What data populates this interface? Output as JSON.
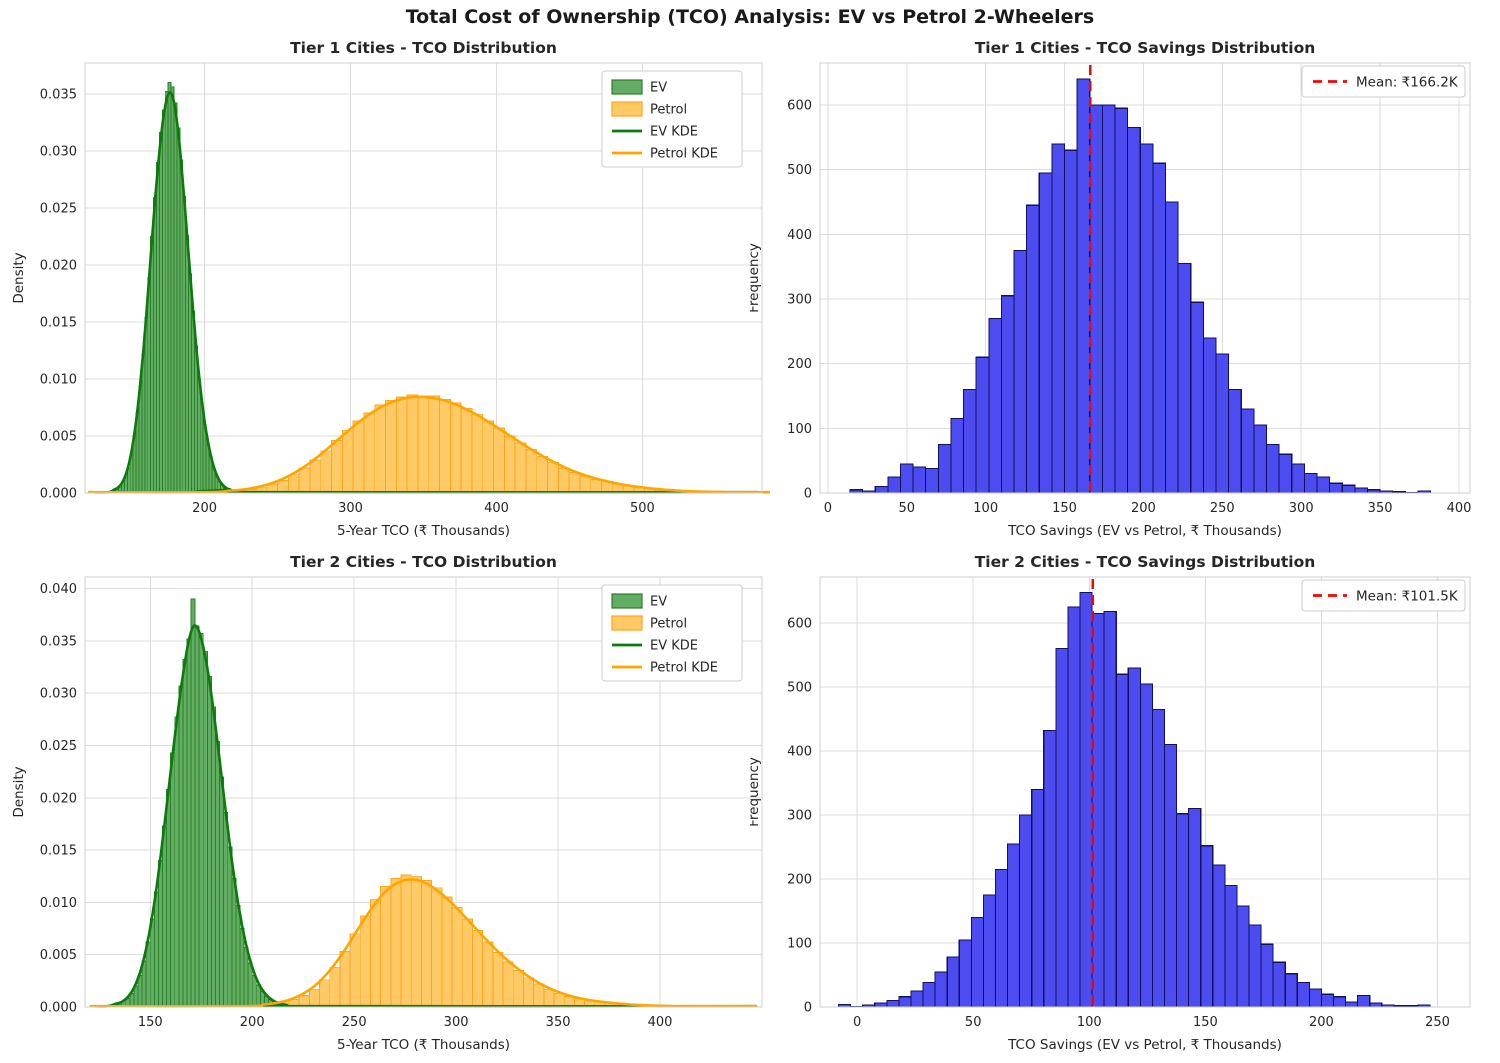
{
  "suptitle": "Total Cost of Ownership (TCO) Analysis: EV vs Petrol 2-Wheelers",
  "colors": {
    "ev_fill": "#63ac63",
    "ev_edge": "#2a7f2a",
    "ev_kde": "#0c7a0c",
    "petrol_fill": "#ffc966",
    "petrol_edge": "#ffa51e",
    "petrol_kde": "#ffa500",
    "savings_fill": "#4c4cf0",
    "savings_edge": "#11115e",
    "mean_line": "#ff0000",
    "grid": "#dcdcdc",
    "spine": "#cfcfcf",
    "title_text": "#1a1a1a",
    "tick_text": "#262626"
  },
  "chart_data": [
    {
      "id": "tier1-tco-distribution",
      "type": "histogram-kde",
      "title": "Tier 1 Cities - TCO Distribution",
      "xlabel": "5-Year TCO (₹ Thousands)",
      "ylabel": "Density",
      "xlim": [
        118,
        582
      ],
      "ylim": [
        0,
        0.0377
      ],
      "xticks": [
        200,
        300,
        400,
        500
      ],
      "yticks": [
        0.0,
        0.005,
        0.01,
        0.015,
        0.02,
        0.025,
        0.03,
        0.035
      ],
      "y_decimals": 3,
      "grid": true,
      "legend": [
        "EV",
        "Petrol",
        "EV KDE",
        "Petrol KDE"
      ],
      "legend_position": "upper right",
      "series": [
        {
          "name": "EV",
          "color_key": "ev",
          "bin_start": 137,
          "bin_width": 2,
          "kde": true,
          "kde_sigma": 1.3,
          "counts": [
            0.0002,
            0.0003,
            0.0005,
            0.0009,
            0.0014,
            0.0022,
            0.0034,
            0.005,
            0.007,
            0.0094,
            0.0122,
            0.0154,
            0.0189,
            0.0225,
            0.0259,
            0.029,
            0.0316,
            0.0336,
            0.0352,
            0.036,
            0.0356,
            0.0342,
            0.032,
            0.0292,
            0.026,
            0.0226,
            0.0192,
            0.0159,
            0.0129,
            0.0102,
            0.0079,
            0.006,
            0.0044,
            0.0032,
            0.0022,
            0.0015,
            0.001,
            0.0007,
            0.0004,
            0.0003,
            0.0002
          ]
        },
        {
          "name": "Petrol",
          "color_key": "petrol",
          "bin_start": 213,
          "bin_width": 7.4,
          "kde": true,
          "kde_sigma": 1.5,
          "counts": [
            0.0001,
            0.0002,
            0.0003,
            0.0005,
            0.0008,
            0.0011,
            0.0016,
            0.0022,
            0.0029,
            0.0037,
            0.0046,
            0.0055,
            0.0063,
            0.007,
            0.0077,
            0.0081,
            0.0084,
            0.0086,
            0.0085,
            0.0085,
            0.0082,
            0.0079,
            0.0074,
            0.0069,
            0.0063,
            0.0057,
            0.005,
            0.0044,
            0.0038,
            0.0032,
            0.0027,
            0.0022,
            0.0018,
            0.0015,
            0.0012,
            0.001,
            0.0008,
            0.0006,
            0.0005,
            0.0004,
            0.0003,
            0.0002,
            0.0002,
            0.0001,
            0.0001,
            0.0001,
            0.0001,
            0.0001,
            0.0,
            0.0
          ]
        }
      ]
    },
    {
      "id": "tier1-tco-savings",
      "type": "histogram",
      "title": "Tier 1 Cities - TCO Savings Distribution",
      "xlabel": "TCO Savings (EV vs Petrol, ₹ Thousands)",
      "ylabel": "Frequency",
      "xlim": [
        -5,
        407
      ],
      "ylim": [
        0,
        665
      ],
      "xticks": [
        0,
        50,
        100,
        150,
        200,
        250,
        300,
        350,
        400
      ],
      "yticks": [
        0,
        100,
        200,
        300,
        400,
        500,
        600
      ],
      "y_decimals": 0,
      "grid": true,
      "mean_line": {
        "value": 166.2,
        "label": "Mean: ₹166.2K"
      },
      "series": [
        {
          "name": "TCO Savings",
          "color_key": "savings",
          "bin_start": 14,
          "bin_width": 8,
          "kde": false,
          "counts": [
            5,
            3,
            10,
            25,
            45,
            40,
            38,
            75,
            115,
            160,
            210,
            270,
            305,
            375,
            445,
            495,
            540,
            530,
            640,
            600,
            600,
            595,
            565,
            540,
            510,
            450,
            355,
            295,
            240,
            215,
            160,
            130,
            105,
            75,
            60,
            45,
            30,
            25,
            15,
            12,
            8,
            5,
            3,
            2,
            1,
            3
          ]
        }
      ]
    },
    {
      "id": "tier2-tco-distribution",
      "type": "histogram-kde",
      "title": "Tier 2 Cities - TCO Distribution",
      "xlabel": "5-Year TCO (₹ Thousands)",
      "ylabel": "Density",
      "xlim": [
        118,
        450
      ],
      "ylim": [
        0,
        0.0411
      ],
      "xticks": [
        150,
        200,
        250,
        300,
        350,
        400
      ],
      "yticks": [
        0.0,
        0.005,
        0.01,
        0.015,
        0.02,
        0.025,
        0.03,
        0.035,
        0.04
      ],
      "y_decimals": 3,
      "grid": true,
      "legend": [
        "EV",
        "Petrol",
        "EV KDE",
        "Petrol KDE"
      ],
      "legend_position": "upper right",
      "series": [
        {
          "name": "EV",
          "color_key": "ev",
          "bin_start": 132,
          "bin_width": 2,
          "kde": true,
          "kde_sigma": 1.3,
          "counts": [
            0.0002,
            0.0003,
            0.0005,
            0.0008,
            0.0013,
            0.002,
            0.003,
            0.0044,
            0.0062,
            0.0084,
            0.011,
            0.014,
            0.0173,
            0.0208,
            0.0243,
            0.0277,
            0.0307,
            0.0332,
            0.0352,
            0.039,
            0.0364,
            0.0357,
            0.034,
            0.0316,
            0.0287,
            0.0254,
            0.022,
            0.0186,
            0.0153,
            0.0123,
            0.0097,
            0.0075,
            0.0057,
            0.0042,
            0.003,
            0.0021,
            0.0015,
            0.001,
            0.0007,
            0.0005,
            0.0003,
            0.0002,
            0.0001
          ]
        },
        {
          "name": "Petrol",
          "color_key": "petrol",
          "bin_start": 203,
          "bin_width": 5,
          "kde": true,
          "kde_sigma": 1.5,
          "counts": [
            0.0001,
            0.0002,
            0.0004,
            0.0007,
            0.0011,
            0.0017,
            0.0026,
            0.0038,
            0.0053,
            0.007,
            0.0087,
            0.0103,
            0.0115,
            0.0123,
            0.0126,
            0.0125,
            0.0121,
            0.0114,
            0.0105,
            0.0095,
            0.0084,
            0.0073,
            0.0062,
            0.0052,
            0.0043,
            0.0035,
            0.0028,
            0.0022,
            0.0017,
            0.0013,
            0.001,
            0.0008,
            0.0006,
            0.0005,
            0.0004,
            0.0003,
            0.0002,
            0.0002,
            0.0001,
            0.0001,
            0.0001,
            0.0001,
            0.0,
            0.0,
            0.0,
            0.0
          ]
        }
      ]
    },
    {
      "id": "tier2-tco-savings",
      "type": "histogram",
      "title": "Tier 2 Cities - TCO Savings Distribution",
      "xlabel": "TCO Savings (EV vs Petrol, ₹ Thousands)",
      "ylabel": "Frequency",
      "xlim": [
        -16,
        264
      ],
      "ylim": [
        0,
        672
      ],
      "xticks": [
        0,
        50,
        100,
        150,
        200,
        250
      ],
      "yticks": [
        0,
        100,
        200,
        300,
        400,
        500,
        600
      ],
      "y_decimals": 0,
      "grid": true,
      "mean_line": {
        "value": 101.5,
        "label": "Mean: ₹101.5K"
      },
      "series": [
        {
          "name": "TCO Savings",
          "color_key": "savings",
          "bin_start": -8,
          "bin_width": 5.2,
          "kde": false,
          "counts": [
            4,
            1,
            3,
            6,
            10,
            16,
            25,
            38,
            55,
            78,
            105,
            140,
            175,
            215,
            255,
            300,
            340,
            432,
            560,
            625,
            648,
            615,
            618,
            520,
            530,
            505,
            465,
            410,
            302,
            310,
            252,
            222,
            190,
            158,
            128,
            98,
            70,
            52,
            38,
            28,
            20,
            16,
            8,
            18,
            6,
            3,
            2,
            2,
            3
          ]
        }
      ]
    }
  ]
}
